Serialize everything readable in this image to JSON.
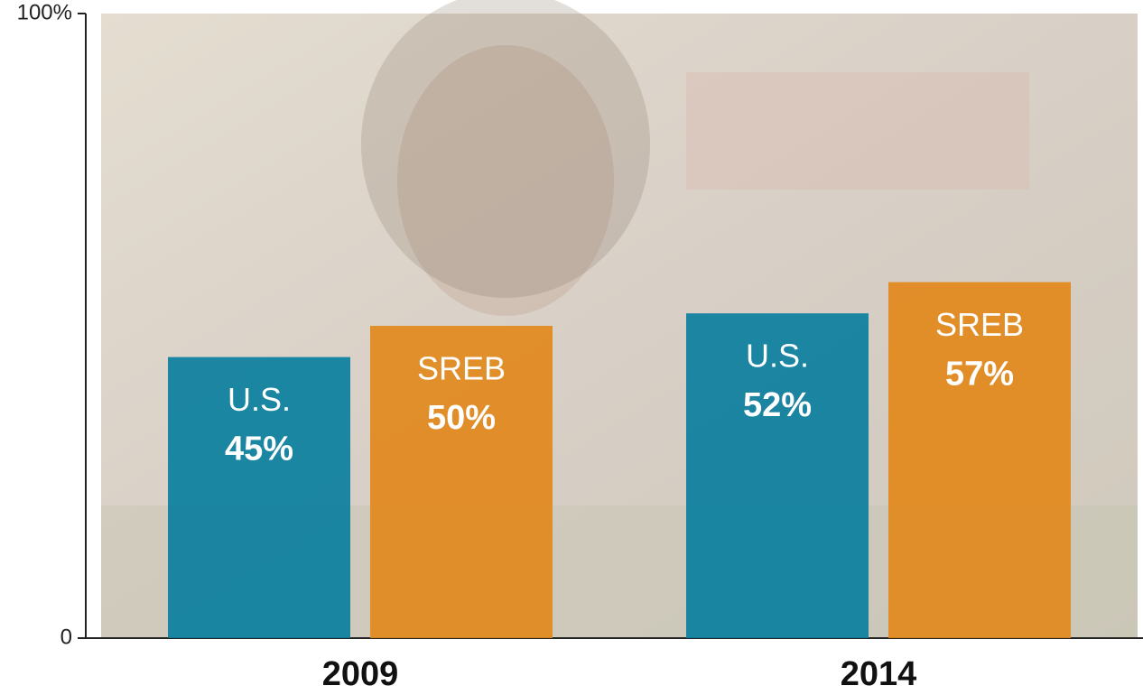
{
  "chart_data": {
    "type": "bar",
    "categories": [
      "2009",
      "2014"
    ],
    "series": [
      {
        "name": "U.S.",
        "color": "#0b7f9e",
        "values": [
          45,
          52
        ],
        "value_labels": [
          "45%",
          "52%"
        ]
      },
      {
        "name": "SREB",
        "color": "#e2891c",
        "values": [
          50,
          57
        ],
        "value_labels": [
          "50%",
          "57%"
        ]
      }
    ],
    "ylim": [
      0,
      100
    ],
    "yticks": [
      0,
      {
        "value": 100,
        "label": "100%"
      }
    ]
  }
}
